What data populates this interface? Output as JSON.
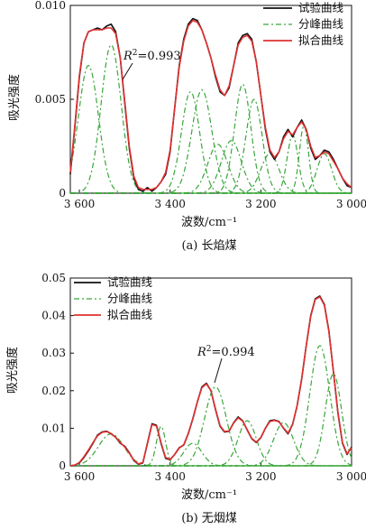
{
  "chart_data": [
    {
      "type": "line",
      "caption": "(a)  长焰煤",
      "xlabel": "波数/cm⁻¹",
      "ylabel": "吸光强度",
      "xlim": [
        3620,
        3000
      ],
      "ylim": [
        0,
        0.01
      ],
      "x_reversed": true,
      "xticks": [
        3600,
        3400,
        3200,
        3000
      ],
      "xtick_labels": [
        "3 600",
        "3 400",
        "3 200",
        "3 000"
      ],
      "yticks": [
        0,
        0.005,
        0.01
      ],
      "ytick_labels": [
        "0",
        "0.005",
        "0.010"
      ],
      "legend": [
        "试验曲线",
        "分峰曲线",
        "拟合曲线"
      ],
      "legend_position": "top-right",
      "annotation": {
        "text": "=0.993",
        "x": 3540,
        "y": 0.0081
      },
      "colors": {
        "experimental": "#111111",
        "peaks": "#3aa63a",
        "fitted": "#e03030"
      },
      "series": [
        {
          "name": "试验曲线",
          "x": [
            3620,
            3610,
            3600,
            3590,
            3580,
            3570,
            3560,
            3550,
            3540,
            3530,
            3520,
            3510,
            3500,
            3490,
            3480,
            3470,
            3460,
            3450,
            3440,
            3430,
            3420,
            3410,
            3400,
            3390,
            3380,
            3370,
            3360,
            3350,
            3340,
            3330,
            3320,
            3310,
            3300,
            3290,
            3280,
            3270,
            3260,
            3250,
            3240,
            3230,
            3220,
            3210,
            3200,
            3190,
            3180,
            3170,
            3160,
            3150,
            3140,
            3130,
            3120,
            3110,
            3100,
            3090,
            3080,
            3070,
            3060,
            3050,
            3040,
            3030,
            3020,
            3010,
            3000
          ],
          "y": [
            0.001,
            0.0035,
            0.0062,
            0.008,
            0.0086,
            0.0087,
            0.0088,
            0.0087,
            0.0089,
            0.009,
            0.0086,
            0.0072,
            0.0048,
            0.0024,
            0.0008,
            0.0002,
            0.0001,
            0.0003,
            0.0001,
            0.0003,
            0.0006,
            0.001,
            0.0022,
            0.0045,
            0.0068,
            0.0082,
            0.009,
            0.0093,
            0.0092,
            0.0087,
            0.008,
            0.0072,
            0.0062,
            0.0054,
            0.0052,
            0.0056,
            0.0068,
            0.008,
            0.0084,
            0.0085,
            0.0082,
            0.007,
            0.0052,
            0.0034,
            0.0022,
            0.0018,
            0.0022,
            0.003,
            0.0034,
            0.003,
            0.0035,
            0.0039,
            0.0034,
            0.0024,
            0.0018,
            0.002,
            0.0023,
            0.0022,
            0.0018,
            0.0013,
            0.0008,
            0.0004,
            0.0003
          ]
        },
        {
          "name": "拟合曲线",
          "x": [
            3620,
            3610,
            3600,
            3590,
            3580,
            3570,
            3560,
            3550,
            3540,
            3530,
            3520,
            3510,
            3500,
            3490,
            3480,
            3470,
            3460,
            3450,
            3440,
            3430,
            3420,
            3410,
            3400,
            3390,
            3380,
            3370,
            3360,
            3350,
            3340,
            3330,
            3320,
            3310,
            3300,
            3290,
            3280,
            3270,
            3260,
            3250,
            3240,
            3230,
            3220,
            3210,
            3200,
            3190,
            3180,
            3170,
            3160,
            3150,
            3140,
            3130,
            3120,
            3110,
            3100,
            3090,
            3080,
            3070,
            3060,
            3050,
            3040,
            3030,
            3020,
            3010,
            3000
          ],
          "y": [
            0.0011,
            0.0036,
            0.0063,
            0.008,
            0.0086,
            0.0087,
            0.0087,
            0.0087,
            0.0088,
            0.0088,
            0.0085,
            0.0072,
            0.0049,
            0.0025,
            0.0009,
            0.0003,
            0.0002,
            0.0002,
            0.0002,
            0.0003,
            0.0006,
            0.0011,
            0.0023,
            0.0045,
            0.0067,
            0.0081,
            0.0089,
            0.0092,
            0.0091,
            0.0087,
            0.008,
            0.0072,
            0.0063,
            0.0055,
            0.0052,
            0.0057,
            0.0068,
            0.0079,
            0.0083,
            0.0084,
            0.0081,
            0.007,
            0.0052,
            0.0035,
            0.0023,
            0.0019,
            0.0022,
            0.0029,
            0.0033,
            0.0031,
            0.0035,
            0.0038,
            0.0034,
            0.0025,
            0.0019,
            0.002,
            0.0022,
            0.0021,
            0.0017,
            0.0013,
            0.0008,
            0.0005,
            0.0003
          ]
        },
        {
          "peaks": [
            {
              "center": 3580,
              "height": 0.0068,
              "width": 22
            },
            {
              "center": 3530,
              "height": 0.0079,
              "width": 22
            },
            {
              "center": 3355,
              "height": 0.0054,
              "width": 20
            },
            {
              "center": 3330,
              "height": 0.0055,
              "width": 22
            },
            {
              "center": 3295,
              "height": 0.0026,
              "width": 22
            },
            {
              "center": 3265,
              "height": 0.0028,
              "width": 22
            },
            {
              "center": 3240,
              "height": 0.0058,
              "width": 18
            },
            {
              "center": 3215,
              "height": 0.005,
              "width": 18
            },
            {
              "center": 3180,
              "height": 0.0021,
              "width": 20
            },
            {
              "center": 3130,
              "height": 0.0031,
              "width": 12
            },
            {
              "center": 3105,
              "height": 0.0036,
              "width": 10
            },
            {
              "center": 3060,
              "height": 0.0021,
              "width": 16
            }
          ]
        }
      ]
    },
    {
      "type": "line",
      "caption": "(b)  无烟煤",
      "xlabel": "波数/cm⁻¹",
      "ylabel": "吸光强度",
      "xlim": [
        3620,
        3000
      ],
      "ylim": [
        0,
        0.05
      ],
      "x_reversed": true,
      "xticks": [
        3600,
        3400,
        3200,
        3000
      ],
      "xtick_labels": [
        "3 600",
        "3 400",
        "3 200",
        "3 000"
      ],
      "yticks": [
        0,
        0.01,
        0.02,
        0.03,
        0.04,
        0.05
      ],
      "ytick_labels": [
        "0",
        "0.01",
        "0.02",
        "0.03",
        "0.04",
        "0.05"
      ],
      "legend": [
        "试验曲线",
        "分峰曲线",
        "拟合曲线"
      ],
      "legend_position": "top-left",
      "annotation": {
        "text": "=0.994",
        "x": 3270,
        "y": 0.0255
      },
      "series": [
        {
          "name": "试验曲线",
          "x": [
            3620,
            3610,
            3600,
            3590,
            3580,
            3570,
            3560,
            3550,
            3540,
            3530,
            3520,
            3510,
            3500,
            3490,
            3480,
            3470,
            3460,
            3450,
            3440,
            3430,
            3420,
            3410,
            3400,
            3390,
            3380,
            3370,
            3360,
            3350,
            3340,
            3330,
            3320,
            3310,
            3300,
            3290,
            3280,
            3270,
            3260,
            3250,
            3240,
            3230,
            3220,
            3210,
            3200,
            3190,
            3180,
            3170,
            3160,
            3150,
            3140,
            3130,
            3120,
            3110,
            3100,
            3090,
            3080,
            3070,
            3060,
            3050,
            3040,
            3030,
            3020,
            3010,
            3000
          ],
          "y": [
            0.0,
            0.0002,
            0.0008,
            0.0022,
            0.004,
            0.006,
            0.0082,
            0.009,
            0.0092,
            0.0085,
            0.0076,
            0.006,
            0.0052,
            0.0035,
            0.0014,
            0.0004,
            0.0008,
            0.006,
            0.0112,
            0.0108,
            0.006,
            0.002,
            0.0016,
            0.003,
            0.0048,
            0.0055,
            0.0085,
            0.0125,
            0.017,
            0.021,
            0.022,
            0.02,
            0.015,
            0.0105,
            0.009,
            0.0092,
            0.0115,
            0.013,
            0.012,
            0.0095,
            0.0072,
            0.0062,
            0.0075,
            0.01,
            0.012,
            0.0122,
            0.0118,
            0.01,
            0.0085,
            0.011,
            0.016,
            0.023,
            0.032,
            0.04,
            0.0445,
            0.0452,
            0.043,
            0.036,
            0.025,
            0.014,
            0.006,
            0.003,
            0.005
          ]
        },
        {
          "name": "拟合曲线",
          "x": [
            3620,
            3610,
            3600,
            3590,
            3580,
            3570,
            3560,
            3550,
            3540,
            3530,
            3520,
            3510,
            3500,
            3490,
            3480,
            3470,
            3460,
            3450,
            3440,
            3430,
            3420,
            3410,
            3400,
            3390,
            3380,
            3370,
            3360,
            3350,
            3340,
            3330,
            3320,
            3310,
            3300,
            3290,
            3280,
            3270,
            3260,
            3250,
            3240,
            3230,
            3220,
            3210,
            3200,
            3190,
            3180,
            3170,
            3160,
            3150,
            3140,
            3130,
            3120,
            3110,
            3100,
            3090,
            3080,
            3070,
            3060,
            3050,
            3040,
            3030,
            3020,
            3010,
            3000
          ],
          "y": [
            0.0,
            0.0002,
            0.0009,
            0.0024,
            0.0042,
            0.0062,
            0.008,
            0.0089,
            0.0091,
            0.0086,
            0.0076,
            0.0062,
            0.005,
            0.0034,
            0.0015,
            0.0005,
            0.0009,
            0.0058,
            0.011,
            0.0106,
            0.0062,
            0.0022,
            0.0017,
            0.003,
            0.0047,
            0.0056,
            0.0086,
            0.0126,
            0.017,
            0.0208,
            0.0218,
            0.02,
            0.0152,
            0.0107,
            0.0091,
            0.0093,
            0.0114,
            0.0128,
            0.0119,
            0.0096,
            0.0073,
            0.0063,
            0.0076,
            0.01,
            0.0118,
            0.0121,
            0.0117,
            0.0101,
            0.0087,
            0.0111,
            0.016,
            0.0232,
            0.032,
            0.0398,
            0.0443,
            0.045,
            0.0428,
            0.0358,
            0.025,
            0.0142,
            0.0062,
            0.0032,
            0.0048
          ]
        },
        {
          "peaks": [
            {
              "center": 3530,
              "height": 0.0085,
              "width": 28
            },
            {
              "center": 3420,
              "height": 0.0105,
              "width": 10
            },
            {
              "center": 3350,
              "height": 0.006,
              "width": 20
            },
            {
              "center": 3300,
              "height": 0.021,
              "width": 24
            },
            {
              "center": 3230,
              "height": 0.012,
              "width": 20
            },
            {
              "center": 3150,
              "height": 0.0115,
              "width": 22
            },
            {
              "center": 3070,
              "height": 0.032,
              "width": 22
            },
            {
              "center": 3040,
              "height": 0.0245,
              "width": 18
            }
          ]
        }
      ]
    }
  ]
}
